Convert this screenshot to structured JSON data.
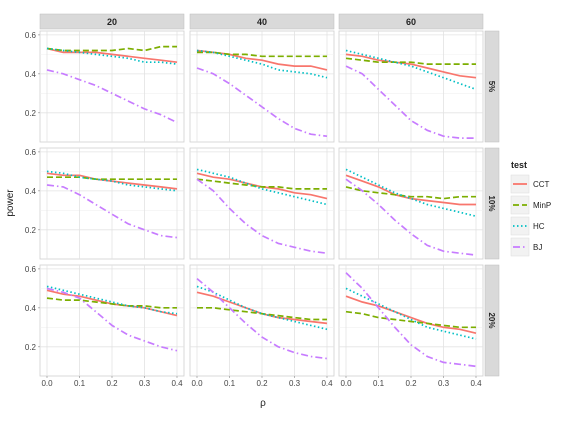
{
  "chart_data": {
    "type": "line",
    "facet_grid": true,
    "xlabel": "ρ",
    "ylabel": "power",
    "x_ticks": [
      "0.0",
      "0.1",
      "0.2",
      "0.3",
      "0.4"
    ],
    "y_ticks": [
      "0.2",
      "0.4",
      "0.6"
    ],
    "xlim": [
      0,
      0.4
    ],
    "ylim": [
      0.05,
      0.62
    ],
    "grid": true,
    "legend": {
      "title": "test",
      "placement": "right",
      "entries": [
        {
          "name": "CCT",
          "color": "#F8766D",
          "dash": "solid"
        },
        {
          "name": "MinP",
          "color": "#7CAE00",
          "dash": "dashed"
        },
        {
          "name": "HC",
          "color": "#00BFC4",
          "dash": "dotted"
        },
        {
          "name": "BJ",
          "color": "#C77CFF",
          "dash": "dashdot"
        }
      ]
    },
    "col_strips": [
      "20",
      "40",
      "60"
    ],
    "row_strips": [
      "5%",
      "10%",
      "20%"
    ],
    "x": [
      0.0,
      0.05,
      0.1,
      0.15,
      0.2,
      0.25,
      0.3,
      0.35,
      0.4
    ],
    "panels": [
      {
        "row": "5%",
        "col": "20",
        "series": [
          {
            "name": "CCT",
            "values": [
              0.53,
              0.51,
              0.51,
              0.51,
              0.5,
              0.49,
              0.48,
              0.47,
              0.46
            ]
          },
          {
            "name": "MinP",
            "values": [
              0.53,
              0.52,
              0.52,
              0.52,
              0.52,
              0.53,
              0.52,
              0.54,
              0.54
            ]
          },
          {
            "name": "HC",
            "values": [
              0.53,
              0.52,
              0.51,
              0.5,
              0.49,
              0.48,
              0.46,
              0.46,
              0.45
            ]
          },
          {
            "name": "BJ",
            "values": [
              0.42,
              0.4,
              0.37,
              0.34,
              0.3,
              0.26,
              0.22,
              0.19,
              0.15
            ]
          }
        ]
      },
      {
        "row": "5%",
        "col": "40",
        "series": [
          {
            "name": "CCT",
            "values": [
              0.52,
              0.51,
              0.5,
              0.48,
              0.47,
              0.45,
              0.44,
              0.44,
              0.42
            ]
          },
          {
            "name": "MinP",
            "values": [
              0.51,
              0.51,
              0.5,
              0.5,
              0.49,
              0.49,
              0.49,
              0.49,
              0.49
            ]
          },
          {
            "name": "HC",
            "values": [
              0.52,
              0.51,
              0.49,
              0.47,
              0.45,
              0.42,
              0.41,
              0.4,
              0.38
            ]
          },
          {
            "name": "BJ",
            "values": [
              0.43,
              0.4,
              0.35,
              0.29,
              0.23,
              0.17,
              0.12,
              0.09,
              0.08
            ]
          }
        ]
      },
      {
        "row": "5%",
        "col": "60",
        "series": [
          {
            "name": "CCT",
            "values": [
              0.5,
              0.49,
              0.47,
              0.46,
              0.45,
              0.43,
              0.41,
              0.39,
              0.38
            ]
          },
          {
            "name": "MinP",
            "values": [
              0.48,
              0.47,
              0.46,
              0.46,
              0.46,
              0.45,
              0.45,
              0.45,
              0.45
            ]
          },
          {
            "name": "HC",
            "values": [
              0.52,
              0.5,
              0.48,
              0.46,
              0.44,
              0.41,
              0.38,
              0.35,
              0.32
            ]
          },
          {
            "name": "BJ",
            "values": [
              0.44,
              0.4,
              0.32,
              0.24,
              0.16,
              0.11,
              0.08,
              0.07,
              0.07
            ]
          }
        ]
      },
      {
        "row": "10%",
        "col": "20",
        "series": [
          {
            "name": "CCT",
            "values": [
              0.49,
              0.48,
              0.48,
              0.46,
              0.45,
              0.44,
              0.43,
              0.42,
              0.41
            ]
          },
          {
            "name": "MinP",
            "values": [
              0.47,
              0.47,
              0.47,
              0.46,
              0.46,
              0.46,
              0.46,
              0.46,
              0.46
            ]
          },
          {
            "name": "HC",
            "values": [
              0.5,
              0.49,
              0.47,
              0.46,
              0.45,
              0.43,
              0.42,
              0.41,
              0.4
            ]
          },
          {
            "name": "BJ",
            "values": [
              0.43,
              0.42,
              0.38,
              0.33,
              0.28,
              0.23,
              0.2,
              0.17,
              0.16
            ]
          }
        ]
      },
      {
        "row": "10%",
        "col": "40",
        "series": [
          {
            "name": "CCT",
            "values": [
              0.49,
              0.47,
              0.46,
              0.44,
              0.42,
              0.41,
              0.39,
              0.38,
              0.36
            ]
          },
          {
            "name": "MinP",
            "values": [
              0.46,
              0.45,
              0.44,
              0.43,
              0.42,
              0.42,
              0.41,
              0.41,
              0.41
            ]
          },
          {
            "name": "HC",
            "values": [
              0.51,
              0.49,
              0.47,
              0.44,
              0.41,
              0.39,
              0.37,
              0.35,
              0.33
            ]
          },
          {
            "name": "BJ",
            "values": [
              0.46,
              0.4,
              0.31,
              0.23,
              0.17,
              0.13,
              0.11,
              0.09,
              0.08
            ]
          }
        ]
      },
      {
        "row": "10%",
        "col": "60",
        "series": [
          {
            "name": "CCT",
            "values": [
              0.48,
              0.45,
              0.42,
              0.38,
              0.36,
              0.35,
              0.34,
              0.33,
              0.33
            ]
          },
          {
            "name": "MinP",
            "values": [
              0.42,
              0.4,
              0.39,
              0.38,
              0.37,
              0.37,
              0.36,
              0.37,
              0.37
            ]
          },
          {
            "name": "HC",
            "values": [
              0.51,
              0.47,
              0.43,
              0.39,
              0.36,
              0.33,
              0.31,
              0.29,
              0.27
            ]
          },
          {
            "name": "BJ",
            "values": [
              0.46,
              0.4,
              0.33,
              0.25,
              0.18,
              0.12,
              0.09,
              0.08,
              0.07
            ]
          }
        ]
      },
      {
        "row": "20%",
        "col": "20",
        "series": [
          {
            "name": "CCT",
            "values": [
              0.49,
              0.47,
              0.46,
              0.44,
              0.42,
              0.41,
              0.4,
              0.38,
              0.36
            ]
          },
          {
            "name": "MinP",
            "values": [
              0.45,
              0.44,
              0.44,
              0.43,
              0.42,
              0.41,
              0.41,
              0.4,
              0.4
            ]
          },
          {
            "name": "HC",
            "values": [
              0.51,
              0.49,
              0.47,
              0.45,
              0.43,
              0.41,
              0.4,
              0.38,
              0.37
            ]
          },
          {
            "name": "BJ",
            "values": [
              0.5,
              0.48,
              0.45,
              0.38,
              0.31,
              0.26,
              0.23,
              0.2,
              0.18
            ]
          }
        ]
      },
      {
        "row": "20%",
        "col": "40",
        "series": [
          {
            "name": "CCT",
            "values": [
              0.48,
              0.46,
              0.43,
              0.4,
              0.37,
              0.35,
              0.34,
              0.33,
              0.32
            ]
          },
          {
            "name": "MinP",
            "values": [
              0.4,
              0.4,
              0.39,
              0.38,
              0.37,
              0.36,
              0.35,
              0.34,
              0.34
            ]
          },
          {
            "name": "HC",
            "values": [
              0.51,
              0.48,
              0.44,
              0.4,
              0.37,
              0.35,
              0.33,
              0.31,
              0.29
            ]
          },
          {
            "name": "BJ",
            "values": [
              0.55,
              0.48,
              0.4,
              0.32,
              0.25,
              0.2,
              0.17,
              0.15,
              0.14
            ]
          }
        ]
      },
      {
        "row": "20%",
        "col": "60",
        "series": [
          {
            "name": "CCT",
            "values": [
              0.46,
              0.43,
              0.41,
              0.38,
              0.35,
              0.32,
              0.3,
              0.29,
              0.27
            ]
          },
          {
            "name": "MinP",
            "values": [
              0.38,
              0.37,
              0.35,
              0.34,
              0.33,
              0.32,
              0.31,
              0.3,
              0.3
            ]
          },
          {
            "name": "HC",
            "values": [
              0.5,
              0.46,
              0.42,
              0.38,
              0.34,
              0.3,
              0.28,
              0.26,
              0.24
            ]
          },
          {
            "name": "BJ",
            "values": [
              0.58,
              0.5,
              0.4,
              0.3,
              0.21,
              0.15,
              0.12,
              0.11,
              0.1
            ]
          }
        ]
      }
    ]
  }
}
